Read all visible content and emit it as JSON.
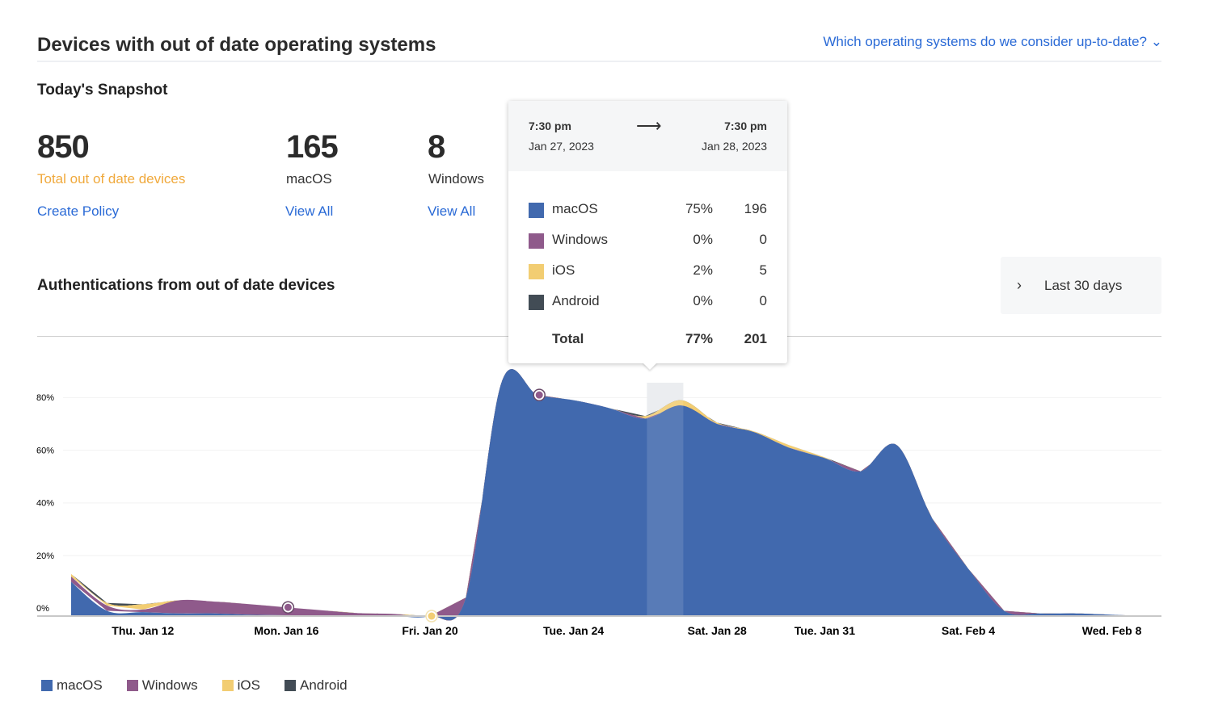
{
  "header": {
    "title": "Devices with out of date operating systems",
    "help_link": "Which operating systems do we consider up-to-date?"
  },
  "snapshot": {
    "title": "Today's Snapshot",
    "stats": [
      {
        "value": "850",
        "label": "Total out of date devices",
        "link": "Create Policy"
      },
      {
        "value": "165",
        "label": "macOS",
        "link": "View All"
      },
      {
        "value": "8",
        "label": "Windows",
        "link": "View All"
      }
    ]
  },
  "auth": {
    "title": "Authentications from out of date devices",
    "range": "Last 30 days"
  },
  "tooltip": {
    "start_time": "7:30 pm",
    "start_date": "Jan 27, 2023",
    "end_time": "7:30 pm",
    "end_date": "Jan 28, 2023",
    "rows": [
      {
        "label": "macOS",
        "percent": "75%",
        "count": "196"
      },
      {
        "label": "Windows",
        "percent": "0%",
        "count": "0"
      },
      {
        "label": "iOS",
        "percent": "2%",
        "count": "5"
      },
      {
        "label": "Android",
        "percent": "0%",
        "count": "0"
      }
    ],
    "total": {
      "label": "Total",
      "percent": "77%",
      "count": "201"
    }
  },
  "colors": {
    "macOS": "#4169ae",
    "Windows": "#8f5a8b",
    "iOS": "#f2cd72",
    "Android": "#424c55",
    "link": "#2a6ad6",
    "accent_orange": "#f0a93c"
  },
  "chart_data": {
    "type": "area",
    "stacked": true,
    "x": [
      "Jan 10",
      "Jan 11",
      "Jan 12",
      "Jan 13",
      "Jan 14",
      "Jan 15",
      "Jan 16",
      "Jan 17",
      "Jan 18",
      "Jan 19",
      "Jan 20",
      "Jan 21",
      "Jan 22",
      "Jan 23",
      "Jan 24",
      "Jan 25",
      "Jan 26",
      "Jan 27",
      "Jan 28",
      "Jan 29",
      "Jan 30",
      "Jan 31",
      "Feb 1",
      "Feb 2",
      "Feb 3",
      "Feb 4",
      "Feb 5",
      "Feb 6",
      "Feb 7",
      "Feb 8",
      "Feb 9"
    ],
    "series": [
      {
        "name": "macOS",
        "values": [
          13,
          2,
          1.5,
          1,
          1,
          0.5,
          0.3,
          0.2,
          0.1,
          0,
          0,
          7,
          89,
          84,
          82,
          79,
          75,
          80,
          73,
          70,
          64,
          60,
          55,
          65,
          37,
          18,
          2,
          1,
          1,
          0.5,
          0
        ]
      },
      {
        "name": "Windows",
        "values": [
          2,
          2,
          1,
          5,
          4.5,
          4,
          3,
          2,
          1,
          0.8,
          0,
          0,
          0,
          0,
          0,
          0,
          0,
          0,
          0,
          0,
          0,
          0,
          0,
          0,
          0,
          0,
          0,
          0,
          0,
          0,
          0
        ]
      },
      {
        "name": "iOS",
        "values": [
          1,
          1,
          2,
          0,
          0,
          0,
          0,
          0,
          0,
          0,
          0,
          0,
          0,
          0,
          0,
          0,
          1,
          2,
          0.5,
          0.3,
          1,
          0.3,
          0,
          0,
          0,
          0,
          0,
          0,
          0,
          0,
          0
        ]
      },
      {
        "name": "Android",
        "values": [
          0,
          0,
          0,
          0,
          0,
          0,
          0,
          0,
          0,
          0,
          0,
          0,
          0,
          0,
          0,
          0,
          0,
          0,
          0,
          0,
          0,
          0,
          0,
          0,
          0,
          0,
          0,
          0,
          0,
          0,
          0
        ]
      }
    ],
    "y_ticks": [
      "0%",
      "20%",
      "40%",
      "60%",
      "80%"
    ],
    "ylim": [
      0,
      100
    ],
    "x_ticks": [
      "Thu. Jan 12",
      "Mon. Jan 16",
      "Fri. Jan 20",
      "Tue. Jan 24",
      "Sat. Jan 28",
      "Tue. Jan 31",
      "Sat. Feb 4",
      "Wed. Feb 8"
    ],
    "highlight": "Jan 26 – Jan 27",
    "legend": [
      "macOS",
      "Windows",
      "iOS",
      "Android"
    ],
    "legend_position": "bottom-left",
    "grid": true
  }
}
